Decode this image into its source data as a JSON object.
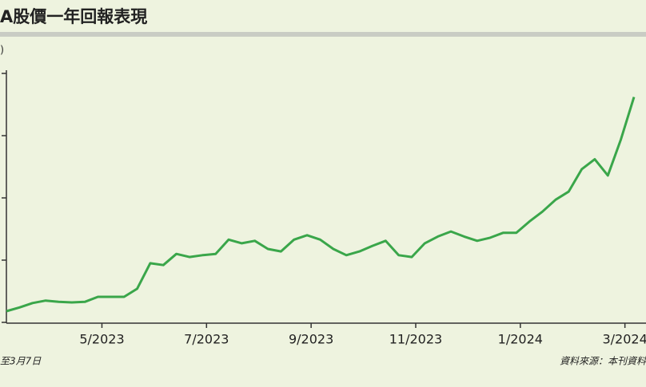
{
  "chart_data": {
    "type": "line",
    "title": "A股價一年回報表現",
    "y_label": ")",
    "categories": [
      null,
      null,
      null,
      null,
      null,
      null,
      null,
      "5/2023",
      null,
      null,
      null,
      null,
      null,
      null,
      null,
      "7/2023",
      null,
      null,
      null,
      null,
      null,
      null,
      null,
      "9/2023",
      null,
      null,
      null,
      null,
      null,
      null,
      null,
      "11/2023",
      null,
      null,
      null,
      null,
      null,
      null,
      null,
      "1/2024",
      null,
      null,
      null,
      null,
      null,
      null,
      null,
      "3/2024",
      null
    ],
    "values": [
      0.18,
      0.24,
      0.31,
      0.35,
      0.33,
      0.32,
      0.33,
      0.41,
      0.41,
      0.41,
      0.54,
      0.95,
      0.92,
      1.1,
      1.05,
      1.08,
      1.1,
      1.33,
      1.27,
      1.31,
      1.18,
      1.14,
      1.33,
      1.4,
      1.33,
      1.18,
      1.08,
      1.14,
      1.23,
      1.31,
      1.08,
      1.05,
      1.27,
      1.38,
      1.46,
      1.38,
      1.31,
      1.36,
      1.44,
      1.44,
      1.62,
      1.78,
      1.97,
      2.1,
      2.46,
      2.62,
      2.36,
      2.94,
      3.62
    ],
    "color": "#3aa64a",
    "ylim": [
      0,
      4
    ],
    "yticks": [
      0,
      1,
      2,
      3,
      4
    ],
    "note": "至3月7日",
    "source": "資料來源：本刊資料"
  }
}
